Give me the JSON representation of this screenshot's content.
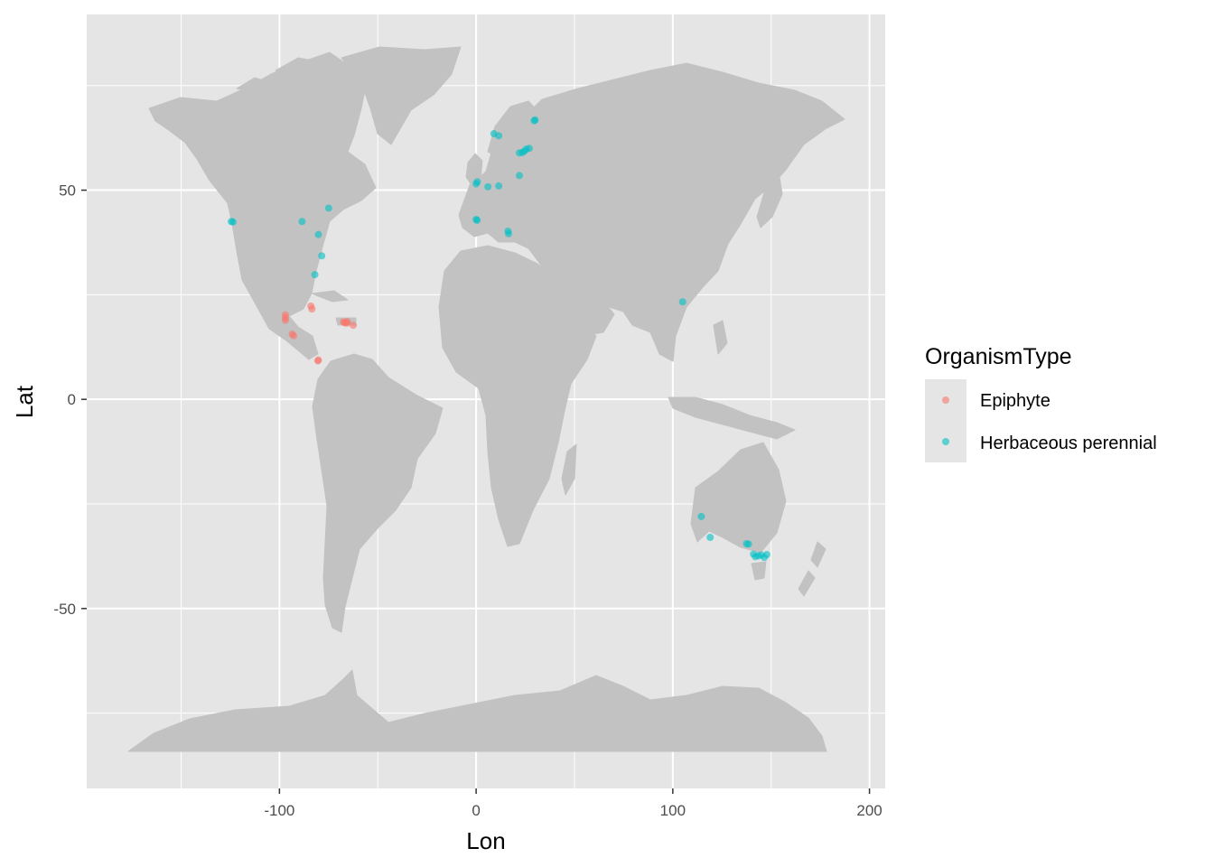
{
  "chart_data": {
    "type": "scatter",
    "xlabel": "Lon",
    "ylabel": "Lat",
    "xlim": [
      -198,
      208
    ],
    "ylim": [
      -93,
      92
    ],
    "x_ticks": [
      -100,
      0,
      100,
      200
    ],
    "x_tick_labels": [
      "-100",
      "0",
      "100",
      "200"
    ],
    "y_ticks": [
      -50,
      0,
      50
    ],
    "y_tick_labels": [
      "-50",
      "0",
      "50"
    ],
    "x_minor": [
      -150,
      -50,
      50,
      150
    ],
    "y_minor": [
      -75,
      -25,
      25,
      75
    ],
    "grid": true,
    "legend": {
      "title": "OrganismType",
      "placement": "right"
    },
    "colors": {
      "panel": "#e5e5e5",
      "grid": "#ffffff",
      "land": "#c2c2c2",
      "Epiphyte": "#f8766d",
      "Herbaceous perennial": "#00bfc4"
    },
    "series": [
      {
        "name": "Epiphyte",
        "points": [
          [
            -97,
            20.2
          ],
          [
            -97,
            19.5
          ],
          [
            -97,
            18.9
          ],
          [
            -93.5,
            15.6
          ],
          [
            -92.8,
            15.2
          ],
          [
            -84,
            22.3
          ],
          [
            -83.5,
            21.6
          ],
          [
            -80.5,
            9.2
          ],
          [
            -80.2,
            9.4
          ],
          [
            -67.5,
            18.5
          ],
          [
            -66.8,
            18.3
          ],
          [
            -65.8,
            18.2
          ],
          [
            -65.5,
            18.6
          ],
          [
            -62.5,
            17.7
          ]
        ]
      },
      {
        "name": "Herbaceous perennial",
        "points": [
          [
            -124.5,
            42.5
          ],
          [
            -123.6,
            42.4
          ],
          [
            -88.5,
            42.5
          ],
          [
            -75,
            45.7
          ],
          [
            -80.2,
            39.4
          ],
          [
            -78.5,
            34.3
          ],
          [
            -82,
            29.8
          ],
          [
            0,
            51.5
          ],
          [
            0.6,
            52
          ],
          [
            6,
            50.8
          ],
          [
            11.5,
            51
          ],
          [
            22,
            53.5
          ],
          [
            0,
            43
          ],
          [
            0.5,
            42.8
          ],
          [
            16.2,
            40.2
          ],
          [
            16.5,
            39.6
          ],
          [
            9,
            63.5
          ],
          [
            11.5,
            63
          ],
          [
            22,
            58.9
          ],
          [
            23.5,
            59
          ],
          [
            24.5,
            59.3
          ],
          [
            25.5,
            59.8
          ],
          [
            27,
            60
          ],
          [
            29.5,
            66.6
          ],
          [
            30,
            66.8
          ],
          [
            105,
            23.3
          ],
          [
            114.5,
            -28
          ],
          [
            119,
            -33
          ],
          [
            137.5,
            -34.5
          ],
          [
            138.5,
            -34.6
          ],
          [
            141,
            -37
          ],
          [
            142,
            -37.6
          ],
          [
            143.5,
            -37.4
          ],
          [
            145,
            -37.2
          ],
          [
            146.5,
            -37.8
          ],
          [
            147.8,
            -37.1
          ]
        ]
      }
    ]
  }
}
